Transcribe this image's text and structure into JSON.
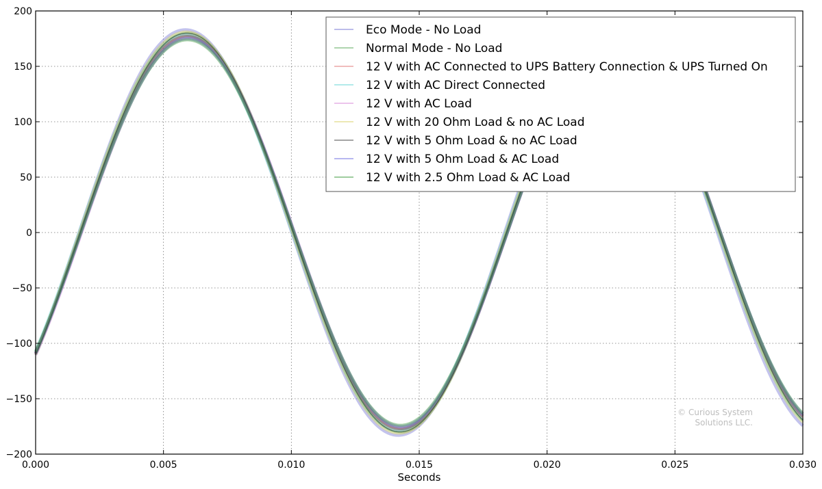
{
  "chart_data": {
    "type": "line",
    "title": "",
    "xlabel": "Seconds",
    "ylabel": "",
    "xlim": [
      0.0,
      0.03
    ],
    "ylim": [
      -200,
      200
    ],
    "x_ticks": [
      "0.000",
      "0.005",
      "0.010",
      "0.015",
      "0.020",
      "0.025",
      "0.030"
    ],
    "y_ticks": [
      "200",
      "150",
      "100",
      "50",
      "0",
      "−50",
      "−100",
      "−150",
      "−200"
    ],
    "grid": true,
    "legend_position": "top-right",
    "series": [
      {
        "name": "Eco Mode - No Load",
        "color": "#7b7bd6",
        "amplitude": 183,
        "frequency_hz": 60.1,
        "phase_offset_s": 0.0017
      },
      {
        "name": "Normal Mode - No Load",
        "color": "#5ba85b",
        "amplitude": 180,
        "frequency_hz": 60.0,
        "phase_offset_s": 0.00175
      },
      {
        "name": "12 V with AC Connected to UPS Battery Connection & UPS Turned On",
        "color": "#e07a7a",
        "amplitude": 178,
        "frequency_hz": 60.0,
        "phase_offset_s": 0.00175
      },
      {
        "name": "12 V with AC Direct Connected",
        "color": "#66d4d4",
        "amplitude": 179,
        "frequency_hz": 60.0,
        "phase_offset_s": 0.0017
      },
      {
        "name": "12 V with AC Load",
        "color": "#d98ad9",
        "amplitude": 176,
        "frequency_hz": 60.05,
        "phase_offset_s": 0.0018
      },
      {
        "name": "12 V with 20 Ohm Load & no AC Load",
        "color": "#d8cf6a",
        "amplitude": 181,
        "frequency_hz": 60.0,
        "phase_offset_s": 0.00172
      },
      {
        "name": "12 V with 5 Ohm Load & no AC Load",
        "color": "#4a4a4a",
        "amplitude": 177,
        "frequency_hz": 59.95,
        "phase_offset_s": 0.00176
      },
      {
        "name": "12 V with 5 Ohm Load & AC Load",
        "color": "#6f6fe0",
        "amplitude": 175,
        "frequency_hz": 60.0,
        "phase_offset_s": 0.00178
      },
      {
        "name": "12 V with 2.5 Ohm Load & AC Load",
        "color": "#3f9a3f",
        "amplitude": 174,
        "frequency_hz": 60.0,
        "phase_offset_s": 0.00177
      }
    ]
  },
  "watermark": {
    "line1": "© Curious System",
    "line2": "Solutions LLC."
  }
}
